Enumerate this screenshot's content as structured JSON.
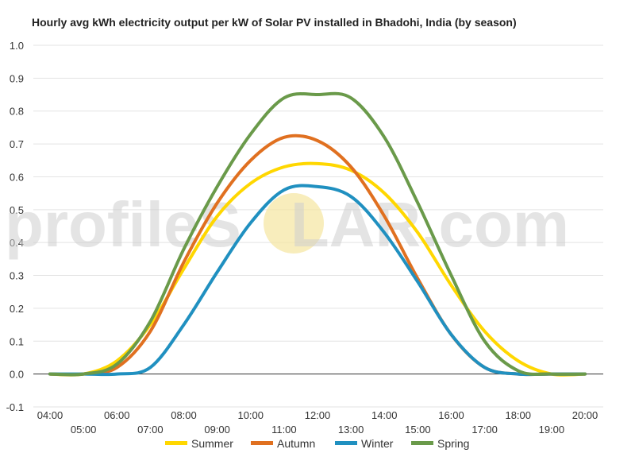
{
  "chart_data": {
    "type": "line",
    "title": "Hourly avg kWh electricity output per kW of Solar PV installed in Bhadohi, India (by season)",
    "xlabel": "",
    "ylabel": "",
    "x": [
      "04:00",
      "05:00",
      "06:00",
      "07:00",
      "08:00",
      "09:00",
      "10:00",
      "11:00",
      "12:00",
      "13:00",
      "14:00",
      "15:00",
      "16:00",
      "17:00",
      "18:00",
      "19:00",
      "20:00"
    ],
    "ylim": [
      -0.1,
      1.0
    ],
    "yticks": [
      "-0.1",
      "0.0",
      "0.1",
      "0.2",
      "0.3",
      "0.4",
      "0.5",
      "0.6",
      "0.7",
      "0.8",
      "0.9",
      "1.0"
    ],
    "grid": true,
    "legend_position": "bottom",
    "series": [
      {
        "name": "Summer",
        "color": "#FFD700",
        "values": [
          0.0,
          0.0,
          0.04,
          0.15,
          0.32,
          0.48,
          0.58,
          0.63,
          0.64,
          0.62,
          0.55,
          0.43,
          0.27,
          0.13,
          0.04,
          0.0,
          0.0
        ]
      },
      {
        "name": "Autumn",
        "color": "#E07020",
        "values": [
          0.0,
          0.0,
          0.02,
          0.13,
          0.34,
          0.52,
          0.65,
          0.72,
          0.71,
          0.63,
          0.48,
          0.29,
          0.12,
          0.02,
          0.0,
          0.0,
          0.0
        ]
      },
      {
        "name": "Winter",
        "color": "#2090C0",
        "values": [
          0.0,
          0.0,
          0.0,
          0.02,
          0.15,
          0.31,
          0.46,
          0.56,
          0.57,
          0.54,
          0.43,
          0.28,
          0.12,
          0.02,
          0.0,
          0.0,
          0.0
        ]
      },
      {
        "name": "Spring",
        "color": "#6A9A4A",
        "values": [
          0.0,
          0.0,
          0.03,
          0.16,
          0.38,
          0.57,
          0.73,
          0.84,
          0.85,
          0.84,
          0.72,
          0.52,
          0.3,
          0.1,
          0.01,
          0.0,
          0.0
        ]
      }
    ]
  },
  "watermark": {
    "text_left": "profile",
    "text_mid": "S",
    "text_o": "O",
    "text_right": "LAR.com",
    "sun_color": "#F5E6A0"
  }
}
